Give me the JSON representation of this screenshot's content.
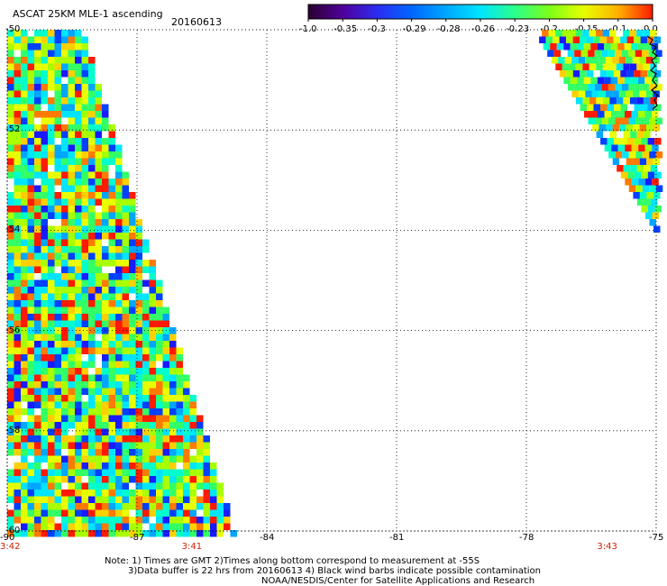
{
  "header": {
    "title": "ASCAT 25KM MLE-1 ascending",
    "date": "20160613"
  },
  "colorbar": {
    "labels": [
      "-1.0",
      "-0.35",
      "-0.3",
      "-0.29",
      "-0.28",
      "-0.26",
      "-0.23",
      "-0.2",
      "-0.15",
      "-0.1",
      "0.0"
    ],
    "colors": [
      "#2a0030",
      "#50009a",
      "#2c2cf2",
      "#0066ff",
      "#00a6ff",
      "#00e5ff",
      "#2bff8a",
      "#7cff1a",
      "#e8ff00",
      "#ffb000",
      "#ff1a00"
    ]
  },
  "map": {
    "lon_ticks": [
      "-90",
      "-87",
      "-84",
      "-81",
      "-78",
      "-75"
    ],
    "lat_ticks": [
      "-50",
      "-52",
      "-54",
      "-56",
      "-58",
      "-60"
    ],
    "lon_range": [
      -90,
      -75
    ],
    "lat_range": [
      -60,
      -50
    ],
    "times": [
      {
        "label": "3:42",
        "lon": -90
      },
      {
        "label": "3:41",
        "lon": -85.8
      },
      {
        "label": "3:43",
        "lon": -76.2
      }
    ],
    "grid": "dotted",
    "swaths": [
      {
        "name": "west-swath",
        "lat_top": -50,
        "lat_bottom": -60,
        "lon_left": -90,
        "lon_right_top": -88.3,
        "lon_right_bottom": -84.8
      },
      {
        "name": "east-swath",
        "lat_top": -50,
        "lat_bottom": -54,
        "lon_left_top": -77.8,
        "lon_left_bottom": -75,
        "lon_right": -75
      }
    ]
  },
  "notes": {
    "line1": "Note: 1) Times are GMT 2)Times along bottom correspond to measurement at -55S",
    "line2": "3)Data buffer is 22 hrs from 20160613 4) Black wind barbs indicate possible contamination",
    "line3": "NOAA/NESDIS/Center for Satellite Applications and Research"
  }
}
